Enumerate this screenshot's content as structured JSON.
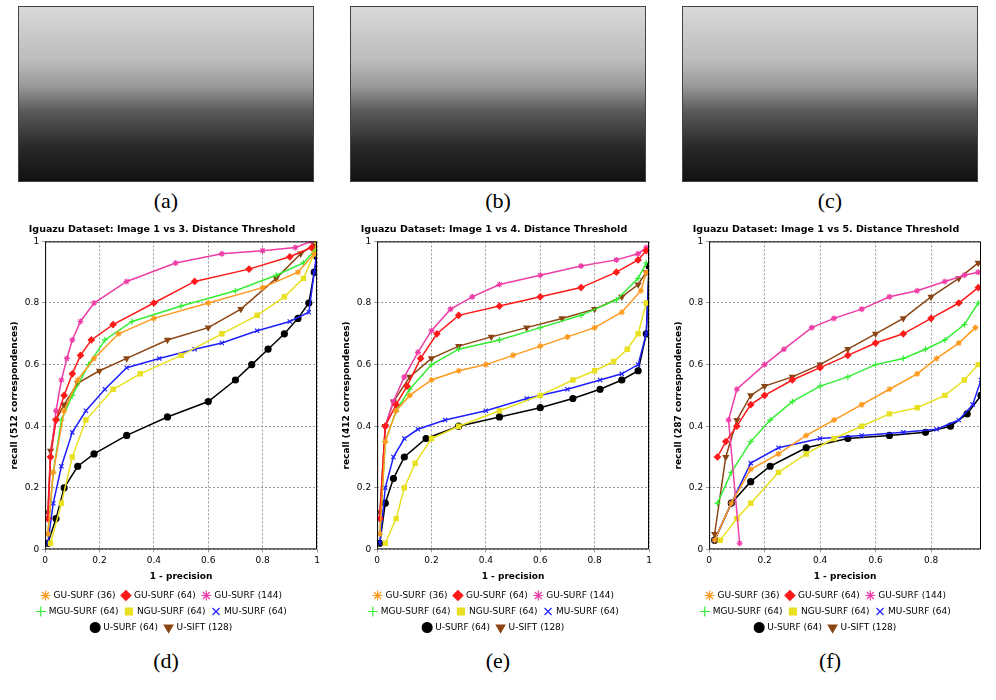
{
  "images": [
    {
      "label": "(a)"
    },
    {
      "label": "(b)"
    },
    {
      "label": "(c)"
    }
  ],
  "chart_data": [
    {
      "type": "line",
      "label": "(d)",
      "title": "Iguazu Dataset: Image 1 vs 3. Distance Threshold",
      "x_label": "1 - precision",
      "y_label": "recall (512 correspondences)",
      "xlim": [
        0,
        1
      ],
      "xticks": [
        0,
        0.2,
        0.4,
        0.6,
        0.8,
        1
      ],
      "ylim": [
        0,
        1
      ],
      "yticks": [
        0,
        0.2,
        0.4,
        0.6,
        0.8,
        1
      ],
      "grid": true,
      "legend": "bottom",
      "series": [
        {
          "name": "GU-SURF (36)",
          "color": "#ff9a1f",
          "marker": "star",
          "x": [
            0.01,
            0.03,
            0.07,
            0.12,
            0.18,
            0.27,
            0.4,
            0.6,
            0.8,
            0.93,
            0.99
          ],
          "values": [
            0.05,
            0.25,
            0.45,
            0.55,
            0.62,
            0.7,
            0.75,
            0.8,
            0.85,
            0.9,
            0.96
          ]
        },
        {
          "name": "GU-SURF (64)",
          "color": "#ff1a1a",
          "marker": "diamond",
          "x": [
            0.01,
            0.02,
            0.04,
            0.07,
            0.1,
            0.13,
            0.17,
            0.25,
            0.4,
            0.55,
            0.75,
            0.9,
            0.98
          ],
          "values": [
            0.1,
            0.3,
            0.42,
            0.5,
            0.57,
            0.63,
            0.68,
            0.73,
            0.8,
            0.87,
            0.91,
            0.95,
            0.98
          ]
        },
        {
          "name": "GU-SURF (144)",
          "color": "#ee3da6",
          "marker": "star",
          "x": [
            0.01,
            0.02,
            0.04,
            0.06,
            0.08,
            0.1,
            0.13,
            0.18,
            0.3,
            0.48,
            0.65,
            0.8,
            0.92,
            0.98
          ],
          "values": [
            0.1,
            0.3,
            0.45,
            0.55,
            0.62,
            0.68,
            0.74,
            0.8,
            0.87,
            0.93,
            0.96,
            0.97,
            0.98,
            1
          ]
        },
        {
          "name": "MGU-SURF (64)",
          "color": "#33ee33",
          "marker": "plus",
          "x": [
            0.01,
            0.03,
            0.06,
            0.1,
            0.16,
            0.22,
            0.32,
            0.5,
            0.7,
            0.85,
            0.95,
            0.99
          ],
          "values": [
            0.05,
            0.25,
            0.42,
            0.5,
            0.6,
            0.68,
            0.74,
            0.79,
            0.84,
            0.89,
            0.93,
            0.97
          ]
        },
        {
          "name": "NGU-SURF (64)",
          "color": "#e8e020",
          "marker": "square",
          "x": [
            0.02,
            0.06,
            0.1,
            0.15,
            0.25,
            0.35,
            0.5,
            0.65,
            0.78,
            0.88,
            0.95,
            0.99,
            1
          ],
          "values": [
            0.02,
            0.15,
            0.3,
            0.42,
            0.52,
            0.57,
            0.63,
            0.7,
            0.76,
            0.82,
            0.88,
            0.96,
            1
          ]
        },
        {
          "name": "MU-SURF (64)",
          "color": "#1f1fff",
          "marker": "x",
          "x": [
            0.01,
            0.03,
            0.06,
            0.1,
            0.15,
            0.22,
            0.3,
            0.42,
            0.55,
            0.65,
            0.78,
            0.9,
            0.97,
            0.99,
            1
          ],
          "values": [
            0.02,
            0.15,
            0.27,
            0.38,
            0.45,
            0.52,
            0.59,
            0.62,
            0.65,
            0.67,
            0.71,
            0.74,
            0.77,
            0.9,
            0.97
          ]
        },
        {
          "name": "U-SURF (64)",
          "color": "#000000",
          "marker": "circle",
          "x": [
            0.01,
            0.04,
            0.07,
            0.12,
            0.18,
            0.3,
            0.45,
            0.6,
            0.7,
            0.76,
            0.82,
            0.88,
            0.93,
            0.97,
            0.99,
            1
          ],
          "values": [
            0.02,
            0.1,
            0.2,
            0.27,
            0.31,
            0.37,
            0.43,
            0.48,
            0.55,
            0.6,
            0.65,
            0.7,
            0.75,
            0.8,
            0.9,
            0.95
          ]
        },
        {
          "name": "U-SIFT (128)",
          "color": "#8b4513",
          "marker": "triangle-down",
          "x": [
            0.01,
            0.02,
            0.04,
            0.07,
            0.12,
            0.2,
            0.3,
            0.45,
            0.6,
            0.72,
            0.85,
            0.94,
            0.99
          ],
          "values": [
            0.12,
            0.32,
            0.42,
            0.47,
            0.54,
            0.58,
            0.62,
            0.68,
            0.72,
            0.78,
            0.88,
            0.96,
            0.99
          ]
        }
      ]
    },
    {
      "type": "line",
      "label": "(e)",
      "title": "Iguazu Dataset: Image 1 vs 4. Distance Threshold",
      "x_label": "1 - precision",
      "y_label": "recall (412 correspondences)",
      "xlim": [
        0,
        1
      ],
      "xticks": [
        0,
        0.2,
        0.4,
        0.6,
        0.8,
        1
      ],
      "ylim": [
        0,
        1
      ],
      "yticks": [
        0,
        0.2,
        0.4,
        0.6,
        0.8,
        1
      ],
      "grid": true,
      "legend": "bottom",
      "series": [
        {
          "name": "GU-SURF (36)",
          "color": "#ff9a1f",
          "marker": "star",
          "x": [
            0.01,
            0.03,
            0.07,
            0.12,
            0.2,
            0.3,
            0.4,
            0.5,
            0.6,
            0.7,
            0.8,
            0.9,
            0.97,
            0.99
          ],
          "values": [
            0.05,
            0.35,
            0.45,
            0.5,
            0.55,
            0.58,
            0.6,
            0.63,
            0.66,
            0.69,
            0.72,
            0.77,
            0.84,
            0.9
          ]
        },
        {
          "name": "GU-SURF (64)",
          "color": "#ff1a1a",
          "marker": "diamond",
          "x": [
            0.01,
            0.03,
            0.07,
            0.11,
            0.16,
            0.22,
            0.3,
            0.45,
            0.6,
            0.75,
            0.88,
            0.96,
            0.99
          ],
          "values": [
            0.1,
            0.4,
            0.47,
            0.53,
            0.62,
            0.7,
            0.76,
            0.79,
            0.82,
            0.85,
            0.9,
            0.94,
            0.97
          ]
        },
        {
          "name": "GU-SURF (144)",
          "color": "#ee3da6",
          "marker": "star",
          "x": [
            0.01,
            0.03,
            0.06,
            0.1,
            0.15,
            0.2,
            0.27,
            0.35,
            0.45,
            0.6,
            0.75,
            0.88,
            0.96,
            0.99
          ],
          "values": [
            0.1,
            0.4,
            0.48,
            0.56,
            0.64,
            0.71,
            0.78,
            0.82,
            0.86,
            0.89,
            0.92,
            0.94,
            0.96,
            0.98
          ]
        },
        {
          "name": "MGU-SURF (64)",
          "color": "#33ee33",
          "marker": "plus",
          "x": [
            0.01,
            0.03,
            0.07,
            0.12,
            0.2,
            0.3,
            0.45,
            0.6,
            0.75,
            0.88,
            0.96,
            0.99
          ],
          "values": [
            0.05,
            0.35,
            0.45,
            0.52,
            0.6,
            0.65,
            0.68,
            0.72,
            0.76,
            0.81,
            0.88,
            0.93
          ]
        },
        {
          "name": "NGU-SURF (64)",
          "color": "#e8e020",
          "marker": "square",
          "x": [
            0.03,
            0.07,
            0.1,
            0.14,
            0.2,
            0.3,
            0.45,
            0.6,
            0.72,
            0.8,
            0.87,
            0.92,
            0.96,
            0.99
          ],
          "values": [
            0.02,
            0.1,
            0.2,
            0.28,
            0.36,
            0.4,
            0.45,
            0.5,
            0.55,
            0.58,
            0.61,
            0.65,
            0.7,
            0.8
          ]
        },
        {
          "name": "MU-SURF (64)",
          "color": "#1f1fff",
          "marker": "x",
          "x": [
            0.01,
            0.03,
            0.06,
            0.1,
            0.15,
            0.25,
            0.4,
            0.55,
            0.7,
            0.82,
            0.9,
            0.96,
            0.99,
            1
          ],
          "values": [
            0.02,
            0.2,
            0.3,
            0.36,
            0.39,
            0.42,
            0.45,
            0.49,
            0.52,
            0.55,
            0.57,
            0.6,
            0.7,
            0.9
          ]
        },
        {
          "name": "U-SURF (64)",
          "color": "#000000",
          "marker": "circle",
          "x": [
            0.01,
            0.03,
            0.06,
            0.1,
            0.18,
            0.3,
            0.45,
            0.6,
            0.72,
            0.82,
            0.9,
            0.96,
            0.99,
            1
          ],
          "values": [
            0.02,
            0.15,
            0.23,
            0.3,
            0.36,
            0.4,
            0.43,
            0.46,
            0.49,
            0.52,
            0.55,
            0.58,
            0.7,
            0.92
          ]
        },
        {
          "name": "U-SIFT (128)",
          "color": "#8b4513",
          "marker": "triangle-down",
          "x": [
            0.01,
            0.03,
            0.06,
            0.12,
            0.2,
            0.3,
            0.42,
            0.55,
            0.68,
            0.8,
            0.9,
            0.96,
            0.99
          ],
          "values": [
            0.12,
            0.4,
            0.48,
            0.56,
            0.62,
            0.66,
            0.69,
            0.72,
            0.75,
            0.78,
            0.82,
            0.86,
            0.9
          ]
        }
      ]
    },
    {
      "type": "line",
      "label": "(f)",
      "title": "Iguazu Dataset: Image 1 vs 5. Distance Threshold",
      "x_label": "1 - precision",
      "y_label": "recall (287 correspondences)",
      "xlim": [
        0,
        0.98
      ],
      "xticks": [
        0,
        0.2,
        0.4,
        0.6,
        0.8
      ],
      "ylim": [
        0,
        1
      ],
      "yticks": [
        0,
        0.2,
        0.4,
        0.6,
        0.8,
        1
      ],
      "grid": true,
      "legend": "bottom",
      "series": [
        {
          "name": "GU-SURF (36)",
          "color": "#ff9a1f",
          "marker": "star",
          "x": [
            0.02,
            0.08,
            0.15,
            0.25,
            0.35,
            0.45,
            0.55,
            0.65,
            0.75,
            0.82,
            0.9,
            0.96
          ],
          "values": [
            0.03,
            0.15,
            0.26,
            0.31,
            0.37,
            0.42,
            0.47,
            0.52,
            0.57,
            0.62,
            0.67,
            0.72
          ]
        },
        {
          "name": "GU-SURF (64)",
          "color": "#ff1a1a",
          "marker": "diamond",
          "x": [
            0.03,
            0.06,
            0.1,
            0.15,
            0.2,
            0.3,
            0.4,
            0.5,
            0.6,
            0.7,
            0.8,
            0.9,
            0.97
          ],
          "values": [
            0.3,
            0.35,
            0.4,
            0.47,
            0.5,
            0.55,
            0.59,
            0.63,
            0.67,
            0.7,
            0.75,
            0.8,
            0.85
          ]
        },
        {
          "name": "GU-SURF (144)",
          "color": "#ee3da6",
          "marker": "star",
          "x": [
            0.11,
            0.07,
            0.1,
            0.2,
            0.27,
            0.37,
            0.45,
            0.55,
            0.65,
            0.75,
            0.85,
            0.92,
            0.97
          ],
          "values": [
            0.02,
            0.42,
            0.52,
            0.6,
            0.65,
            0.72,
            0.75,
            0.78,
            0.82,
            0.84,
            0.87,
            0.89,
            0.9
          ]
        },
        {
          "name": "MGU-SURF (64)",
          "color": "#33ee33",
          "marker": "plus",
          "x": [
            0.03,
            0.08,
            0.15,
            0.22,
            0.3,
            0.4,
            0.5,
            0.6,
            0.7,
            0.78,
            0.85,
            0.92,
            0.97
          ],
          "values": [
            0.15,
            0.25,
            0.35,
            0.42,
            0.48,
            0.53,
            0.56,
            0.6,
            0.62,
            0.65,
            0.68,
            0.73,
            0.8
          ]
        },
        {
          "name": "NGU-SURF (64)",
          "color": "#e8e020",
          "marker": "square",
          "x": [
            0.04,
            0.1,
            0.15,
            0.25,
            0.35,
            0.45,
            0.55,
            0.65,
            0.75,
            0.85,
            0.92,
            0.97
          ],
          "values": [
            0.03,
            0.1,
            0.15,
            0.25,
            0.31,
            0.36,
            0.4,
            0.44,
            0.46,
            0.5,
            0.55,
            0.6
          ]
        },
        {
          "name": "MU-SURF (64)",
          "color": "#1f1fff",
          "marker": "x",
          "x": [
            0.02,
            0.08,
            0.15,
            0.25,
            0.4,
            0.55,
            0.7,
            0.82,
            0.9,
            0.95,
            0.98
          ],
          "values": [
            0.03,
            0.15,
            0.28,
            0.33,
            0.36,
            0.37,
            0.38,
            0.39,
            0.42,
            0.47,
            0.55
          ]
        },
        {
          "name": "U-SURF (64)",
          "color": "#000000",
          "marker": "circle",
          "x": [
            0.02,
            0.08,
            0.15,
            0.22,
            0.35,
            0.5,
            0.65,
            0.78,
            0.87,
            0.93,
            0.98
          ],
          "values": [
            0.03,
            0.15,
            0.22,
            0.27,
            0.33,
            0.36,
            0.37,
            0.38,
            0.4,
            0.44,
            0.5
          ]
        },
        {
          "name": "U-SIFT (128)",
          "color": "#8b4513",
          "marker": "triangle-down",
          "x": [
            0.02,
            0.06,
            0.1,
            0.15,
            0.2,
            0.3,
            0.4,
            0.5,
            0.6,
            0.7,
            0.8,
            0.9,
            0.97
          ],
          "values": [
            0.05,
            0.3,
            0.42,
            0.5,
            0.53,
            0.56,
            0.6,
            0.65,
            0.7,
            0.75,
            0.82,
            0.88,
            0.93
          ]
        }
      ]
    }
  ]
}
